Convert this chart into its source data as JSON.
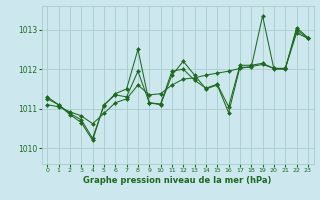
{
  "xlabel": "Graphe pression niveau de la mer (hPa)",
  "background_color": "#cce8ee",
  "grid_color": "#aacccc",
  "line_color": "#1a6b1a",
  "marker_color": "#1a6b1a",
  "xlim": [
    -0.5,
    23.5
  ],
  "ylim": [
    1009.6,
    1013.6
  ],
  "yticks": [
    1010,
    1011,
    1012,
    1013
  ],
  "xticks": [
    0,
    1,
    2,
    3,
    4,
    5,
    6,
    7,
    8,
    9,
    10,
    11,
    12,
    13,
    14,
    15,
    16,
    17,
    18,
    19,
    20,
    21,
    22,
    23
  ],
  "series": [
    [
      1011.3,
      1011.1,
      1010.85,
      1010.65,
      1010.2,
      1011.1,
      1011.35,
      1011.3,
      1011.95,
      1011.15,
      1011.1,
      1011.85,
      1012.2,
      1011.85,
      1011.5,
      1011.6,
      1010.9,
      1012.05,
      1012.05,
      1013.35,
      1012.0,
      1012.0,
      1013.05,
      1012.8
    ],
    [
      1011.25,
      1011.1,
      1010.88,
      1010.72,
      1010.25,
      1011.08,
      1011.38,
      1011.5,
      1012.5,
      1011.15,
      1011.12,
      1011.95,
      1012.0,
      1011.72,
      1011.52,
      1011.62,
      1011.05,
      1012.1,
      1012.1,
      1012.15,
      1012.02,
      1012.02,
      1013.0,
      1012.78
    ],
    [
      1011.1,
      1011.05,
      1010.92,
      1010.82,
      1010.62,
      1010.88,
      1011.15,
      1011.25,
      1011.6,
      1011.35,
      1011.38,
      1011.6,
      1011.75,
      1011.78,
      1011.85,
      1011.9,
      1011.95,
      1012.02,
      1012.07,
      1012.12,
      1012.02,
      1012.02,
      1012.92,
      1012.78
    ]
  ]
}
